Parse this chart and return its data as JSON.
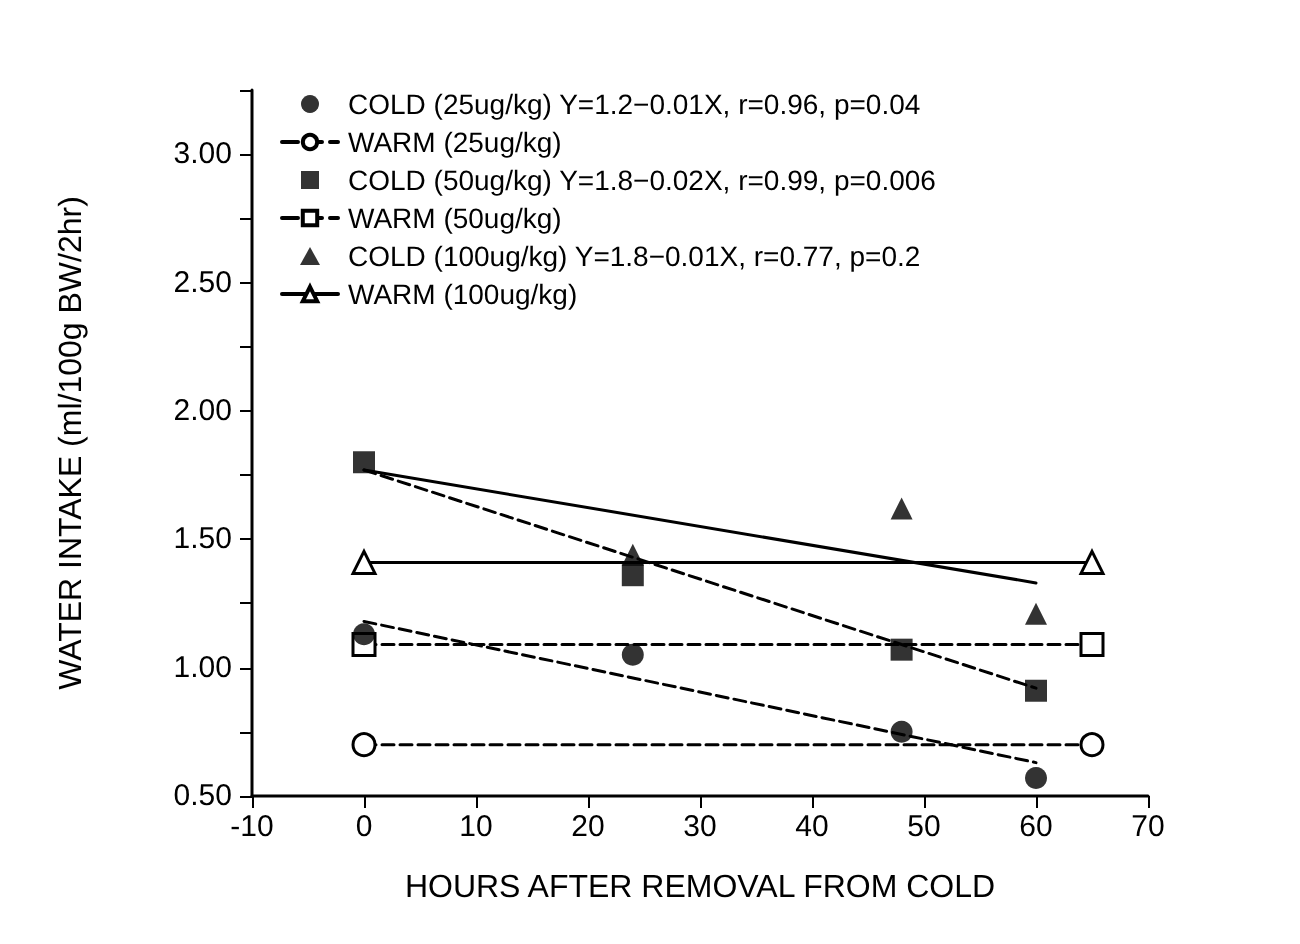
{
  "chart_data": {
    "type": "line",
    "xlabel": "HOURS AFTER REMOVAL FROM COLD",
    "ylabel": "WATER INTAKE (ml/100g BW/2hr)",
    "xlim": [
      -10,
      70
    ],
    "xticks": [
      -10,
      0,
      10,
      20,
      30,
      40,
      50,
      60,
      70
    ],
    "ylim": [
      0.5,
      3.25
    ],
    "yticks": [
      {
        "value": 0.5,
        "label": "0.50"
      },
      {
        "value": 0.75,
        "label": null
      },
      {
        "value": 1.0,
        "label": "1.00"
      },
      {
        "value": 1.25,
        "label": null
      },
      {
        "value": 1.5,
        "label": "1.50"
      },
      {
        "value": 1.75,
        "label": null
      },
      {
        "value": 2.0,
        "label": "2.00"
      },
      {
        "value": 2.25,
        "label": null
      },
      {
        "value": 2.5,
        "label": "2.50"
      },
      {
        "value": 2.75,
        "label": null
      },
      {
        "value": 3.0,
        "label": "3.00"
      },
      {
        "value": 3.25,
        "label": null
      }
    ],
    "grid": false,
    "legend": "top left",
    "series": [
      {
        "name": "COLD (25ug/kg) Y=1.2−0.01X, r=0.96, p=0.04",
        "type": "scatter",
        "marker": "circle",
        "color": "#000000",
        "x": [
          0,
          24,
          48,
          60
        ],
        "values": [
          1.13,
          1.05,
          0.75,
          0.57
        ]
      },
      {
        "name": "WARM (25ug/kg)",
        "marker": "circle",
        "line_style": "dashed",
        "color": "#000000",
        "x": [
          0,
          65
        ],
        "values": [
          0.7,
          0.7
        ]
      },
      {
        "name": "COLD (50ug/kg) Y=1.8−0.02X, r=0.99, p=0.006",
        "type": "scatter",
        "marker": "square",
        "color": "#000000",
        "x": [
          0,
          24,
          48,
          60
        ],
        "values": [
          1.8,
          1.36,
          1.07,
          0.91
        ]
      },
      {
        "name": "WARM (50ug/kg)",
        "marker": "square",
        "line_style": "dashed",
        "color": "#000000",
        "x": [
          0,
          65
        ],
        "values": [
          1.09,
          1.09
        ]
      },
      {
        "name": "COLD (100ug/kg) Y=1.8−0.01X, r=0.77, p=0.2",
        "type": "scatter",
        "marker": "triangle",
        "color": "#000000",
        "x": [
          24,
          48,
          60
        ],
        "values": [
          1.44,
          1.62,
          1.21
        ]
      },
      {
        "name": "WARM (100ug/kg)",
        "marker": "triangle",
        "line_style": "solid",
        "color": "#000000",
        "x": [
          0,
          65
        ],
        "values": [
          1.41,
          1.41
        ]
      },
      {
        "marker": "none",
        "line_style": "dashed",
        "color": "#000000",
        "x": [
          0,
          60
        ],
        "values": [
          1.18,
          0.63
        ]
      },
      {
        "marker": "none",
        "line_style": "dashed",
        "color": "#000000",
        "x": [
          0,
          60
        ],
        "values": [
          1.77,
          0.92
        ]
      },
      {
        "marker": "none",
        "line_style": "solid",
        "color": "#000000",
        "x": [
          0,
          60
        ],
        "values": [
          1.77,
          1.33
        ]
      }
    ]
  }
}
